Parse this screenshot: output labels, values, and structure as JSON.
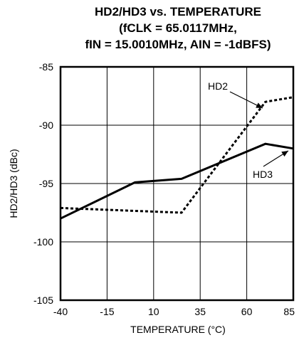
{
  "chart_data": {
    "type": "line",
    "title_lines": [
      "HD2/HD3 vs. TEMPERATURE",
      "(fCLK = 65.0117MHz,",
      "fIN = 15.0010MHz, AIN = -1dBFS)"
    ],
    "xlabel": "TEMPERATURE (°C)",
    "ylabel": "HD2/HD3 (dBc)",
    "xlim": [
      -40,
      85
    ],
    "ylim": [
      -105,
      -85
    ],
    "x_ticks": [
      "-40",
      "-15",
      "10",
      "35",
      "60",
      "85"
    ],
    "y_ticks": [
      "-85",
      "-90",
      "-95",
      "-100",
      "-105"
    ],
    "grid": true,
    "series": [
      {
        "name": "HD2",
        "style": "dashed",
        "x": [
          -40,
          25,
          70,
          85
        ],
        "y": [
          -97.1,
          -97.5,
          -88.0,
          -87.6
        ]
      },
      {
        "name": "HD3",
        "style": "solid",
        "x": [
          -40,
          0,
          25,
          70,
          85
        ],
        "y": [
          -98.0,
          -94.9,
          -94.6,
          -91.6,
          -92.0
        ]
      }
    ],
    "annotations": [
      {
        "text": "HD2",
        "series": "HD2"
      },
      {
        "text": "HD3",
        "series": "HD3"
      }
    ]
  }
}
